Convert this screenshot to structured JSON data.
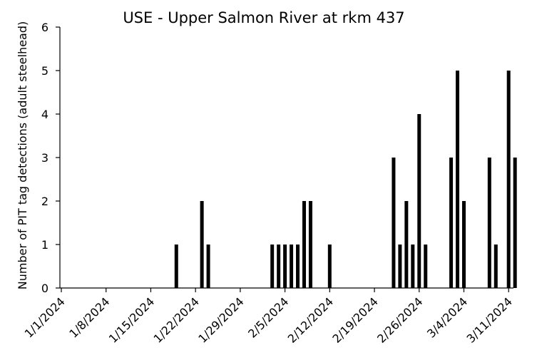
{
  "chart_data": {
    "type": "bar",
    "title": "USE - Upper Salmon River at rkm 437",
    "xlabel": "",
    "ylabel": "Number of PIT tag detections (adult steelhead)",
    "ylim": [
      0,
      6
    ],
    "yticks": [
      "0",
      "1",
      "2",
      "3",
      "4",
      "5",
      "6"
    ],
    "xlim": [
      "2024-01-01",
      "2024-03-12"
    ],
    "xticks": [
      "1/1/2024",
      "1/8/2024",
      "1/15/2024",
      "1/22/2024",
      "1/29/2024",
      "2/5/2024",
      "2/12/2024",
      "2/19/2024",
      "2/26/2024",
      "3/4/2024",
      "3/11/2024"
    ],
    "grid": false,
    "legend": "none",
    "bar_color": "#000000",
    "x": [
      "2024-01-19",
      "2024-01-23",
      "2024-01-24",
      "2024-02-03",
      "2024-02-04",
      "2024-02-05",
      "2024-02-06",
      "2024-02-07",
      "2024-02-08",
      "2024-02-09",
      "2024-02-12",
      "2024-02-22",
      "2024-02-23",
      "2024-02-24",
      "2024-02-25",
      "2024-02-26",
      "2024-02-27",
      "2024-03-02",
      "2024-03-03",
      "2024-03-04",
      "2024-03-08",
      "2024-03-09",
      "2024-03-11",
      "2024-03-12"
    ],
    "values": [
      1,
      2,
      1,
      1,
      1,
      1,
      1,
      1,
      2,
      2,
      1,
      3,
      1,
      2,
      1,
      4,
      1,
      3,
      5,
      2,
      3,
      1,
      5,
      3
    ]
  }
}
